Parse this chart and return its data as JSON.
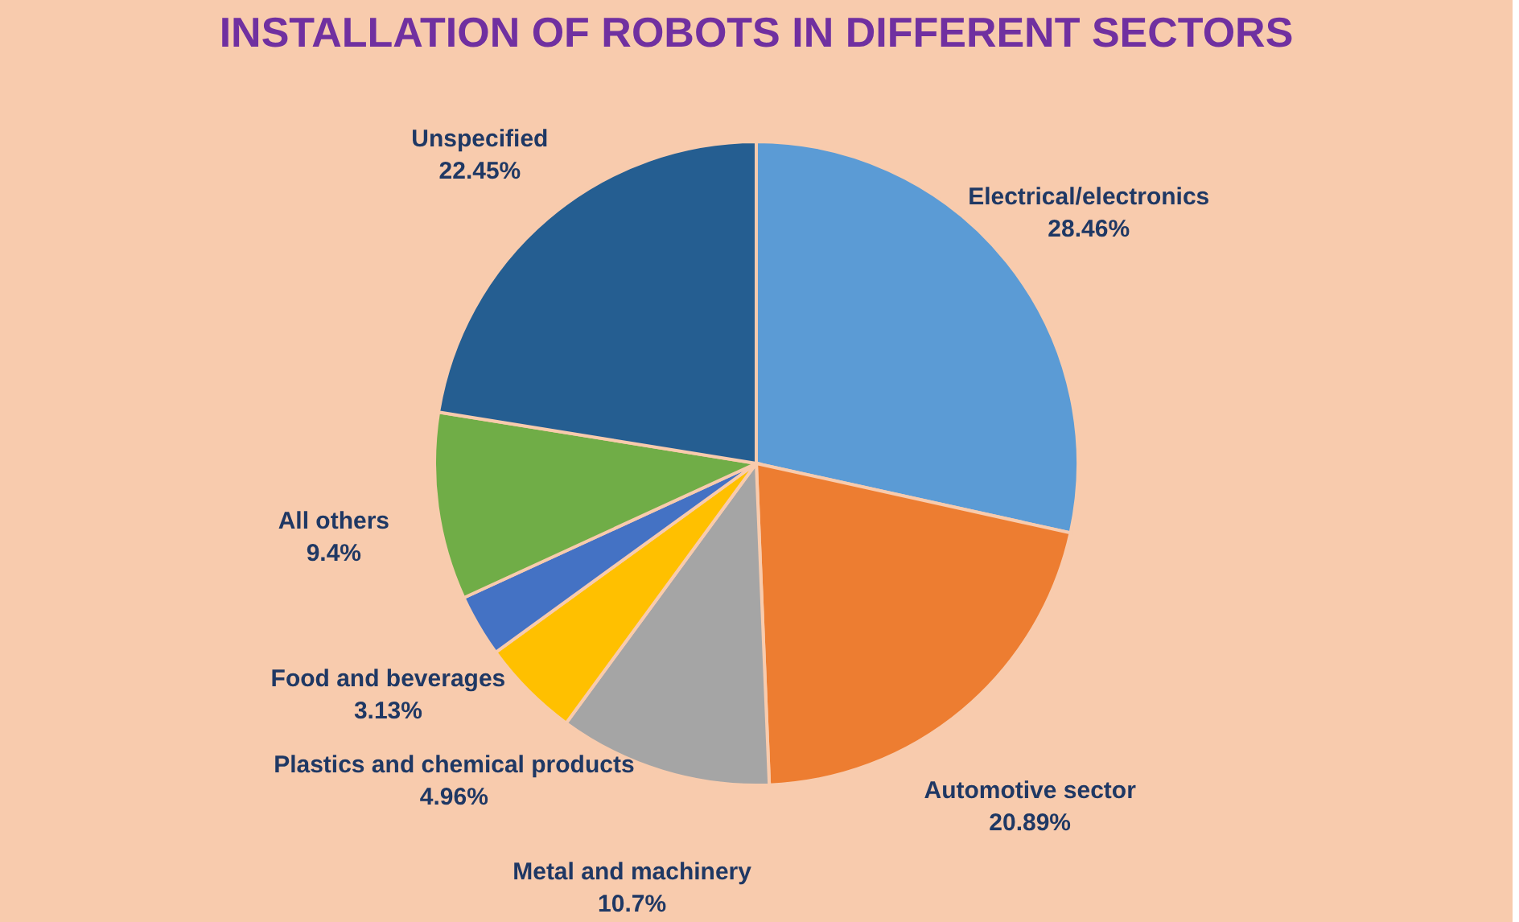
{
  "chart_data": {
    "type": "pie",
    "title": "INSTALLATION OF ROBOTS IN DIFFERENT SECTORS",
    "categories": [
      "Electrical/electronics",
      "Automotive sector",
      "Metal and machinery",
      "Plastics and chemical products",
      "Food and beverages",
      "All others",
      "Unspecified"
    ],
    "values": [
      28.46,
      20.89,
      10.7,
      4.96,
      3.13,
      9.4,
      22.45
    ],
    "value_labels": [
      "28.46%",
      "20.89%",
      "10.7%",
      "4.96%",
      "3.13%",
      "9.4%",
      "22.45%"
    ],
    "colors": [
      "#5b9bd5",
      "#ed7d31",
      "#a5a5a5",
      "#ffc000",
      "#4472c4",
      "#70ad47",
      "#255e91"
    ],
    "legend": false
  }
}
